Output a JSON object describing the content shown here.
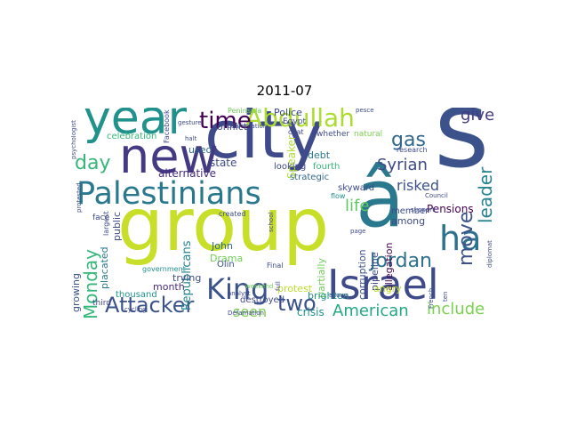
{
  "title": "2011-07",
  "words": [
    {
      "text": "group",
      "color": "#c8df2a"
    },
    {
      "text": "city",
      "color": "#3e4a89"
    },
    {
      "text": "new",
      "color": "#443983"
    },
    {
      "text": "year",
      "color": "#21918c"
    },
    {
      "text": "s",
      "color": "#3b528b"
    },
    {
      "text": "â",
      "color": "#2a788e"
    },
    {
      "text": "Palestinians",
      "color": "#2a788e"
    },
    {
      "text": "Israel",
      "color": "#3e4a89"
    },
    {
      "text": "Abdullah",
      "color": "#addc30"
    },
    {
      "text": "King",
      "color": "#3b528b"
    },
    {
      "text": "ha",
      "color": "#2c728e"
    },
    {
      "text": "Attacker",
      "color": "#3b528b"
    },
    {
      "text": "time",
      "color": "#440154"
    },
    {
      "text": "two",
      "color": "#3b528b"
    },
    {
      "text": "Jordan",
      "color": "#2c728e"
    },
    {
      "text": "day",
      "color": "#35b779"
    },
    {
      "text": "gas",
      "color": "#31688e"
    },
    {
      "text": "Syrian",
      "color": "#3e4a89"
    },
    {
      "text": "give",
      "color": "#443a83"
    },
    {
      "text": "move",
      "color": "#3b528b"
    },
    {
      "text": "Monday",
      "color": "#35b779"
    },
    {
      "text": "American",
      "color": "#22a884"
    },
    {
      "text": "include",
      "color": "#7ad151"
    },
    {
      "text": "leader",
      "color": "#26828e"
    },
    {
      "text": "seen",
      "color": "#7ad151"
    },
    {
      "text": "life",
      "color": "#5ec962"
    },
    {
      "text": "Republicans",
      "color": "#25858e"
    },
    {
      "text": "alternative",
      "color": "#472d7b"
    },
    {
      "text": "state",
      "color": "#3e4a89"
    },
    {
      "text": "Pensions",
      "color": "#440154"
    },
    {
      "text": "Police",
      "color": "#3e4a89"
    },
    {
      "text": "debt",
      "color": "#2a788e"
    },
    {
      "text": "risked",
      "color": "#3b528b"
    },
    {
      "text": "used",
      "color": "#31688e"
    },
    {
      "text": "John",
      "color": "#31688e"
    },
    {
      "text": "Drama",
      "color": "#6ece58"
    },
    {
      "text": "protest",
      "color": "#bddf26"
    },
    {
      "text": "crisis",
      "color": "#21918c"
    },
    {
      "text": "month",
      "color": "#472d7b"
    },
    {
      "text": "trying",
      "color": "#3e4a89"
    },
    {
      "text": "public",
      "color": "#3e4a89"
    },
    {
      "text": "placated",
      "color": "#2a788e"
    },
    {
      "text": "growing",
      "color": "#3b528b"
    },
    {
      "text": "thousand",
      "color": "#21918c"
    },
    {
      "text": "among",
      "color": "#3e4a89"
    },
    {
      "text": "member",
      "color": "#3e4a89"
    },
    {
      "text": "allegation",
      "color": "#440154"
    },
    {
      "text": "designedincreasingly",
      "color": "#3b528b"
    },
    {
      "text": "pipeline",
      "color": "#3e4a89"
    },
    {
      "text": "corruption",
      "color": "#3b528b"
    },
    {
      "text": "partially",
      "color": "#6ece58"
    },
    {
      "text": "brighten",
      "color": "#21918c"
    },
    {
      "text": "angry",
      "color": "#bddf26"
    },
    {
      "text": "destroyed",
      "color": "#3e4a89"
    },
    {
      "text": "Olin",
      "color": "#3b528b"
    },
    {
      "text": "Speaker",
      "color": "#addc30"
    },
    {
      "text": "looking",
      "color": "#3e4a89"
    },
    {
      "text": "fourth",
      "color": "#35b779"
    },
    {
      "text": "skyward",
      "color": "#3e4a89"
    },
    {
      "text": "strategic",
      "color": "#31688e"
    },
    {
      "text": "conflict",
      "color": "#3e4a89"
    },
    {
      "text": "celebration",
      "color": "#35b779"
    },
    {
      "text": "whether",
      "color": "#3e4a89"
    },
    {
      "text": "natural",
      "color": "#7ad151"
    },
    {
      "text": "research",
      "color": "#3e4a89"
    },
    {
      "text": "Egypt",
      "color": "#3e4a89"
    },
    {
      "text": "chat",
      "color": "#3e4a89"
    },
    {
      "text": "face",
      "color": "#3e4a89"
    },
    {
      "text": "third",
      "color": "#3e4a89"
    },
    {
      "text": "government",
      "color": "#21918c"
    },
    {
      "text": "largest",
      "color": "#3e4a89"
    },
    {
      "text": "Final",
      "color": "#3e4a89"
    },
    {
      "text": "created",
      "color": "#3e4a89"
    },
    {
      "text": "flow",
      "color": "#21918c"
    },
    {
      "text": "Facebook",
      "color": "#3e4a89"
    },
    {
      "text": "Peninsula",
      "color": "#6ece58"
    },
    {
      "text": "psychologist",
      "color": "#3e4a89"
    },
    {
      "text": "protested",
      "color": "#3e4a89"
    },
    {
      "text": "cycling",
      "color": "#3e4a89"
    },
    {
      "text": "analyst",
      "color": "#3e4a89"
    },
    {
      "text": "school",
      "color": "#3e4a89"
    },
    {
      "text": "full",
      "color": "#3e4a89"
    },
    {
      "text": "support",
      "color": "#3e4a89"
    },
    {
      "text": "page",
      "color": "#3e4a89"
    },
    {
      "text": "allows",
      "color": "#3e4a89"
    },
    {
      "text": "Defamation",
      "color": "#3e4a89"
    },
    {
      "text": "weekend",
      "color": "#6ece58"
    },
    {
      "text": "pesce",
      "color": "#3e4a89"
    },
    {
      "text": "confirmation",
      "color": "#3e4a89"
    },
    {
      "text": "gesture",
      "color": "#3e4a89"
    },
    {
      "text": "diplomat",
      "color": "#3e4a89"
    },
    {
      "text": "halt",
      "color": "#3e4a89"
    },
    {
      "text": "Council",
      "color": "#3e4a89"
    },
    {
      "text": "French",
      "color": "#3e4a89"
    },
    {
      "text": "ten",
      "color": "#3e4a89"
    }
  ]
}
